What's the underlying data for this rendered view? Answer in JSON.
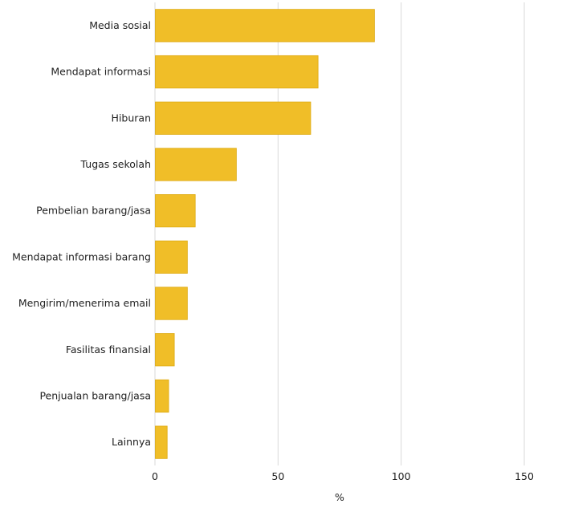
{
  "chart_data": {
    "type": "bar",
    "orientation": "horizontal",
    "categories": [
      "Media sosial",
      "Mendapat informasi",
      "Hiburan",
      "Tugas sekolah",
      "Pembelian barang/jasa",
      "Mendapat informasi barang",
      "Mengirim/menerima email",
      "Fasilitas finansial",
      "Penjualan barang/jasa",
      "Lainnya"
    ],
    "values": [
      88.99,
      66.08,
      63.08,
      32.9,
      16.2,
      13.0,
      13.0,
      7.7,
      5.4,
      4.8
    ],
    "title": "",
    "xlabel": "%",
    "ylabel": "",
    "xlim": [
      0,
      150
    ],
    "xticks": [
      0,
      50,
      100,
      150
    ],
    "grid": "vertical",
    "legend": "none",
    "bar_color": "#F0BE28",
    "bar_edge_color": "#DDAA10",
    "grid_color": "#D9D9D9"
  }
}
